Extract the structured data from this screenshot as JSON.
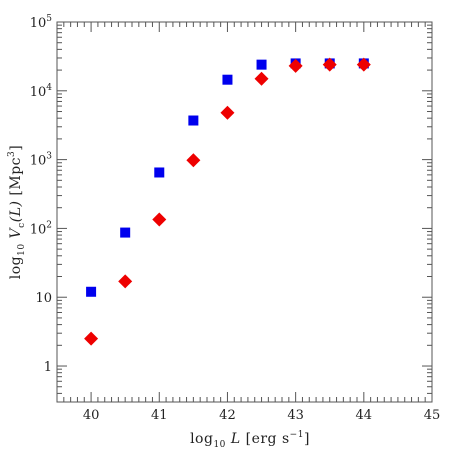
{
  "chart_data": {
    "type": "scatter",
    "title": "",
    "xlabel": {
      "prefix": "log",
      "sub": "10",
      "var": "L",
      "suffix": "[erg s",
      "sup": "−1",
      "close": "]"
    },
    "ylabel": {
      "prefix": "log",
      "sub": "10",
      "var": "V",
      "varsub": "c",
      "args": "(L)",
      "suffix": "[Mpc",
      "sup": "3",
      "close": "]"
    },
    "xlim": [
      39.5,
      45
    ],
    "ylim": [
      0.3,
      100000
    ],
    "yscale": "log",
    "xticks": [
      "40",
      "41",
      "42",
      "43",
      "44",
      "45"
    ],
    "xtick_values": [
      40,
      41,
      42,
      43,
      44,
      45
    ],
    "yticks": [
      {
        "value": 1,
        "label": "1",
        "exp": ""
      },
      {
        "value": 10,
        "label": "10",
        "exp": ""
      },
      {
        "value": 100,
        "label": "10",
        "exp": "2"
      },
      {
        "value": 1000,
        "label": "10",
        "exp": "3"
      },
      {
        "value": 10000,
        "label": "10",
        "exp": "4"
      },
      {
        "value": 100000,
        "label": "10",
        "exp": "5"
      }
    ],
    "grid": false,
    "series": [
      {
        "marker": "square",
        "color": "#0000ee",
        "x": [
          40,
          40.5,
          41,
          41.5,
          42,
          42.5,
          43,
          43.5,
          44
        ],
        "y": [
          12,
          87,
          650,
          3700,
          14500,
          24000,
          25000,
          25000,
          25000
        ]
      },
      {
        "marker": "diamond",
        "color": "#ee0000",
        "x": [
          40,
          40.5,
          41,
          41.5,
          42,
          42.5,
          43,
          43.5,
          44
        ],
        "y": [
          2.5,
          17,
          135,
          980,
          4800,
          15000,
          23000,
          24000,
          24000
        ]
      }
    ]
  }
}
